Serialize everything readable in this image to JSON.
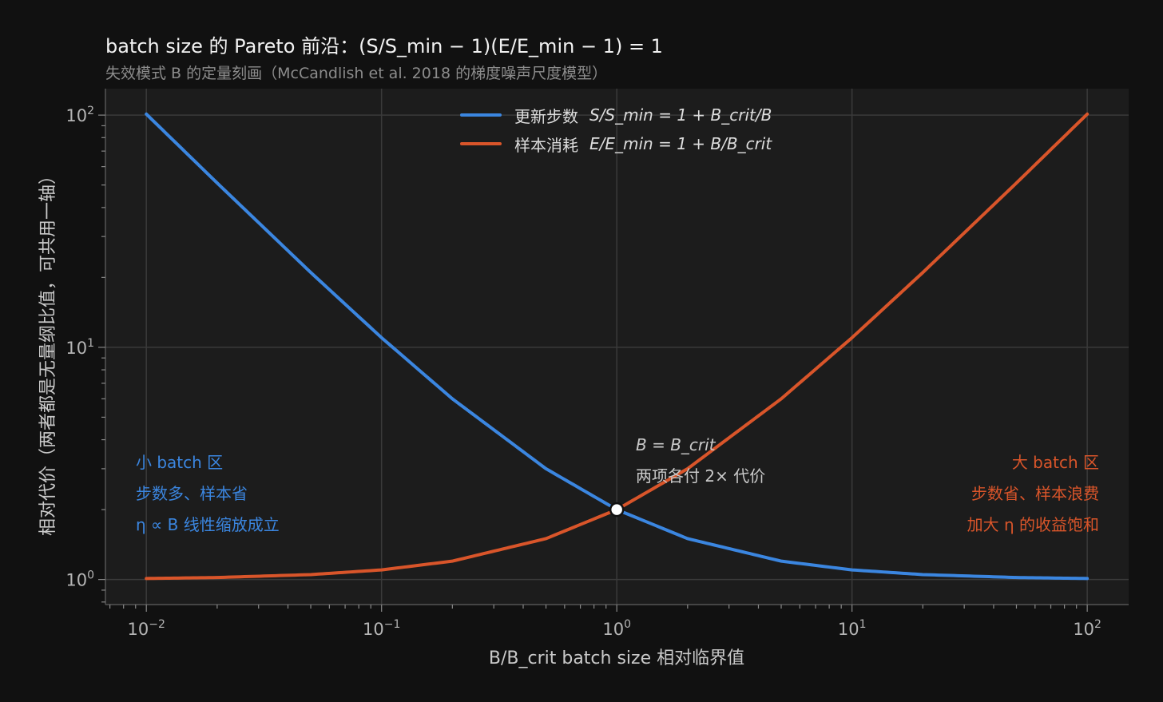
{
  "chart_data": {
    "type": "line",
    "title": "batch size 的 Pareto 前沿：(S/S_min − 1)(E/E_min − 1) = 1",
    "subtitle": "失效模式 B 的定量刻画（McCandlish et al. 2018 的梯度噪声尺度模型）",
    "xlabel": "B/B_crit   batch size 相对临界值",
    "ylabel": "相对代价（两者都是无量纲比值，可共用一轴）",
    "xscale": "log",
    "yscale": "log",
    "xlim": [
      0.0067,
      150
    ],
    "ylim": [
      0.78,
      130
    ],
    "grid": true,
    "legend_position": "top-center",
    "x_tick_labels": [
      "10^-2",
      "10^-1",
      "10^0",
      "10^1",
      "10^2"
    ],
    "x_tick_values": [
      0.01,
      0.1,
      1,
      10,
      100
    ],
    "y_tick_labels": [
      "10^0",
      "10^1",
      "10^2"
    ],
    "y_tick_values": [
      1,
      10,
      100
    ],
    "series": [
      {
        "name": "更新步数",
        "formula": "S/S_min = 1 + B_crit/B",
        "color": "#3b86e0",
        "x": [
          0.01,
          0.02,
          0.05,
          0.1,
          0.2,
          0.5,
          1,
          2,
          5,
          10,
          20,
          50,
          100
        ],
        "y": [
          101,
          51,
          21,
          11,
          6,
          3,
          2,
          1.5,
          1.2,
          1.1,
          1.05,
          1.02,
          1.01
        ]
      },
      {
        "name": "样本消耗",
        "formula": "E/E_min = 1 + B/B_crit",
        "color": "#d9552a",
        "x": [
          0.01,
          0.02,
          0.05,
          0.1,
          0.2,
          0.5,
          1,
          2,
          5,
          10,
          20,
          50,
          100
        ],
        "y": [
          1.01,
          1.02,
          1.05,
          1.1,
          1.2,
          1.5,
          2,
          3,
          6,
          11,
          21,
          51,
          101
        ]
      }
    ],
    "marker": {
      "x": 1,
      "y": 2
    },
    "annotations": {
      "left": [
        "小 batch 区",
        "步数多、样本省",
        "η ∝ B  线性缩放成立"
      ],
      "right": [
        "大 batch 区",
        "步数省、样本浪费",
        "加大 η 的收益饱和"
      ],
      "middle": [
        "B = B_crit",
        "两项各付 2× 代价"
      ]
    }
  }
}
